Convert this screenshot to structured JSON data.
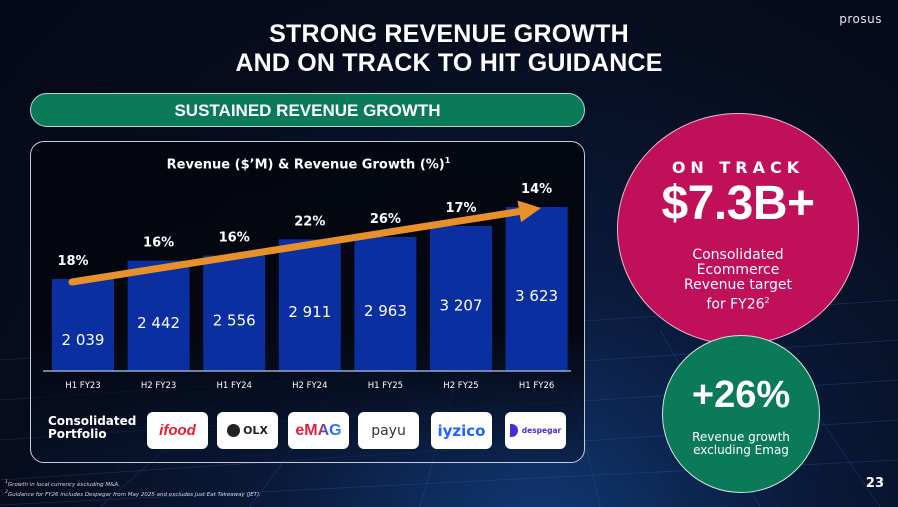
{
  "brand": "prosus",
  "title_line1": "STRONG REVENUE GROWTH",
  "title_line2": "AND ON TRACK TO HIT GUIDANCE",
  "section_label": "SUSTAINED REVENUE GROWTH",
  "chart_data": {
    "type": "bar",
    "title": "Revenue ($’M) & Revenue Growth (%)",
    "title_footnote": "1",
    "xlabel": "",
    "ylabel": "",
    "categories": [
      "H1 FY23",
      "H2 FY23",
      "H1 FY24",
      "H2 FY24",
      "H1 FY25",
      "H2 FY25",
      "H1 FY26"
    ],
    "series": [
      {
        "name": "Revenue ($’M)",
        "values": [
          2039,
          2442,
          2556,
          2911,
          2963,
          3207,
          3623
        ],
        "labels": [
          "2 039",
          "2 442",
          "2 556",
          "2 911",
          "2 963",
          "3 207",
          "3 623"
        ],
        "color": "#0a2fa0"
      },
      {
        "name": "Revenue Growth (%)",
        "values": [
          18,
          16,
          16,
          22,
          26,
          17,
          14
        ],
        "labels": [
          "18%",
          "16%",
          "16%",
          "22%",
          "26%",
          "17%",
          "14%"
        ]
      }
    ],
    "trend_arrow_color": "#e8912a",
    "grid": false,
    "legend": "none"
  },
  "portfolio": {
    "label_line1": "Consolidated",
    "label_line2": "Portfolio",
    "logos": [
      {
        "name": "ifood",
        "text": "ifood",
        "color": "#ea1d2c"
      },
      {
        "name": "olx",
        "text": "OLX",
        "color": "#222222"
      },
      {
        "name": "emag",
        "text": "eMAG",
        "color": "#e0203a"
      },
      {
        "name": "payu",
        "text": "payu",
        "color": "#333333"
      },
      {
        "name": "iyzico",
        "text": "iyzico",
        "color": "#1e64ff"
      },
      {
        "name": "despegar",
        "text": "despegar",
        "color": "#4b2bd6"
      }
    ]
  },
  "footnotes": [
    "Growth in local currency excluding M&A.",
    "Guidance for FY26 includes Despegar from May 2025 and excludes Just Eat Takeaway (JET)."
  ],
  "kpi_target": {
    "eyebrow": "ON TRACK",
    "value": "$7.3B+",
    "line1": "Consolidated",
    "line2": "Ecommerce",
    "line3": "Revenue target",
    "line4": "for FY26",
    "footnote": "2",
    "color": "#c0105a"
  },
  "kpi_growth": {
    "value": "+26%",
    "line1": "Revenue growth",
    "line2": "excluding Emag",
    "color": "#0b7a58"
  },
  "page_number": "23"
}
